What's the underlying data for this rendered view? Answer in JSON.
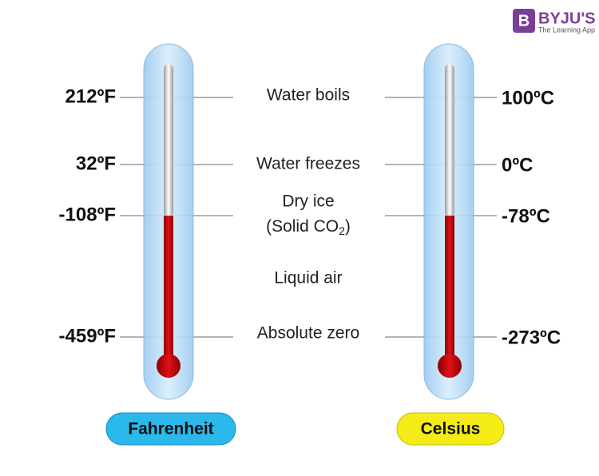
{
  "logo": {
    "mark": "B",
    "name": "BYJU'S",
    "tagline": "The Learning App"
  },
  "fahrenheit": {
    "title": "Fahrenheit",
    "labels": [
      "212ºF",
      "32ºF",
      "-108ºF",
      "-459ºF"
    ]
  },
  "celsius": {
    "title": "Celsius",
    "labels": [
      "100ºC",
      "0ºC",
      "-78ºC",
      "-273ºC"
    ]
  },
  "events": {
    "water_boils": "Water boils",
    "water_freezes": "Water freezes",
    "dry_ice": "Dry ice",
    "solid_co2": {
      "start": "(Solid CO",
      "sub": "2",
      "end": ")"
    },
    "liquid_air": "Liquid air",
    "absolute_zero": "Absolute zero"
  }
}
